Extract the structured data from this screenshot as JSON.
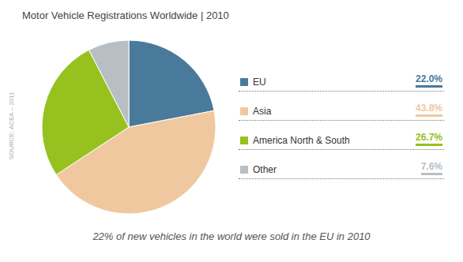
{
  "chart_data": {
    "type": "pie",
    "title": "Motor Vehicle Registrations Worldwide | 2010",
    "categories": [
      "EU",
      "Asia",
      "America North & South",
      "Other"
    ],
    "values": [
      22.0,
      43.8,
      26.7,
      7.6
    ],
    "value_labels": [
      "22.0%",
      "43.8%",
      "26.7%",
      "7.6%"
    ],
    "colors": [
      "#4a7a9b",
      "#f0c8a0",
      "#96c11f",
      "#b8bfc4"
    ],
    "data_labels": true,
    "legend": "right",
    "annotations": [
      "22% of new vehicles in the world were sold in the EU in 2010",
      "SOURCE: ACEA – 2011"
    ]
  }
}
